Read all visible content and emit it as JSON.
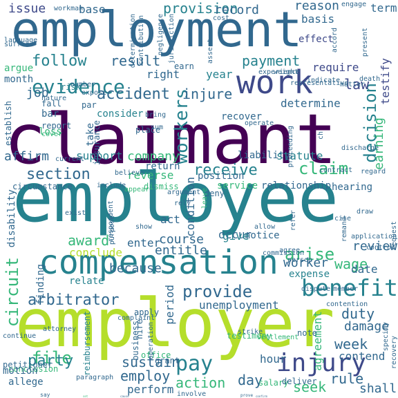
{
  "colors": {
    "background": "#ffffff",
    "palette": [
      "#440154",
      "#482878",
      "#3e4989",
      "#31688e",
      "#26828e",
      "#1f9e89",
      "#35b779",
      "#6ece58",
      "#b5de2b",
      "#fde725"
    ]
  },
  "words": [
    {
      "text": "employment"
    },
    {
      "text": "claimant"
    },
    {
      "text": "employee"
    },
    {
      "text": "employer"
    },
    {
      "text": "compensation"
    },
    {
      "text": "work"
    },
    {
      "text": "benefit"
    },
    {
      "text": "injury"
    },
    {
      "text": "evidence"
    },
    {
      "text": "workers"
    },
    {
      "text": "decision"
    },
    {
      "text": "follow"
    },
    {
      "text": "result"
    },
    {
      "text": "payment"
    },
    {
      "text": "issue"
    },
    {
      "text": "base"
    },
    {
      "text": "provision"
    },
    {
      "text": "record"
    },
    {
      "text": "reason"
    },
    {
      "text": "effect"
    },
    {
      "text": "law"
    },
    {
      "text": "require"
    },
    {
      "text": "testify"
    },
    {
      "text": "earning"
    },
    {
      "text": "determine"
    },
    {
      "text": "accident"
    },
    {
      "text": "injure"
    },
    {
      "text": "job"
    },
    {
      "text": "year"
    },
    {
      "text": "right"
    },
    {
      "text": "argue"
    },
    {
      "text": "month"
    },
    {
      "text": "affirm"
    },
    {
      "text": "section"
    },
    {
      "text": "company"
    },
    {
      "text": "receive"
    },
    {
      "text": "claim"
    },
    {
      "text": "loss"
    },
    {
      "text": "support"
    },
    {
      "text": "reverse"
    },
    {
      "text": "liability"
    },
    {
      "text": "statute"
    },
    {
      "text": "award"
    },
    {
      "text": "course"
    },
    {
      "text": "worker"
    },
    {
      "text": "circuit"
    },
    {
      "text": "arise"
    },
    {
      "text": "wage"
    },
    {
      "text": "review"
    },
    {
      "text": "date"
    },
    {
      "text": "conclude"
    },
    {
      "text": "entitle"
    },
    {
      "text": "finding"
    },
    {
      "text": "because"
    },
    {
      "text": "provide"
    },
    {
      "text": "arbitrator"
    },
    {
      "text": "relate"
    },
    {
      "text": "period"
    },
    {
      "text": "unemployment"
    },
    {
      "text": "expense"
    },
    {
      "text": "duty"
    },
    {
      "text": "file"
    },
    {
      "text": "damage"
    },
    {
      "text": "week"
    },
    {
      "text": "party"
    },
    {
      "text": "pay"
    },
    {
      "text": "sustain"
    },
    {
      "text": "employ"
    },
    {
      "text": "action"
    },
    {
      "text": "day"
    },
    {
      "text": "seek"
    },
    {
      "text": "hour"
    },
    {
      "text": "agreement"
    },
    {
      "text": "contend"
    },
    {
      "text": "rule"
    },
    {
      "text": "shall"
    },
    {
      "text": "perform"
    },
    {
      "text": "consider"
    },
    {
      "text": "recover"
    },
    {
      "text": "condition"
    },
    {
      "text": "position"
    },
    {
      "text": "service"
    },
    {
      "text": "disability"
    },
    {
      "text": "occur"
    },
    {
      "text": "notice"
    },
    {
      "text": "give"
    },
    {
      "text": "act"
    },
    {
      "text": "enter"
    },
    {
      "text": "dismiss"
    },
    {
      "text": "relationship"
    },
    {
      "text": "hearing"
    },
    {
      "text": "deny"
    },
    {
      "text": "include"
    },
    {
      "text": "circumstance"
    },
    {
      "text": "return"
    },
    {
      "text": "bar"
    },
    {
      "text": "report"
    },
    {
      "text": "fall"
    },
    {
      "text": "establish"
    },
    {
      "text": "risk"
    },
    {
      "text": "earn"
    },
    {
      "text": "par"
    },
    {
      "text": "take"
    },
    {
      "text": "insurance"
    },
    {
      "text": "place"
    },
    {
      "text": "apply"
    },
    {
      "text": "reimbursement"
    },
    {
      "text": "hire"
    },
    {
      "text": "business"
    },
    {
      "text": "office"
    },
    {
      "text": "cause"
    },
    {
      "text": "grant"
    },
    {
      "text": "salary"
    },
    {
      "text": "allege"
    },
    {
      "text": "conclusion"
    },
    {
      "text": "motion"
    },
    {
      "text": "say"
    },
    {
      "text": "set"
    },
    {
      "text": "involve"
    },
    {
      "text": "deliver"
    },
    {
      "text": "confirm"
    },
    {
      "text": "prove"
    },
    {
      "text": "note"
    },
    {
      "text": "complaint"
    },
    {
      "text": "attorney"
    },
    {
      "text": "testimony"
    },
    {
      "text": "strike"
    },
    {
      "text": "settlement"
    },
    {
      "text": "exist"
    },
    {
      "text": "purpose"
    },
    {
      "text": "respondent"
    },
    {
      "text": "petitioner"
    },
    {
      "text": "ch"
    },
    {
      "text": "proceeding"
    },
    {
      "text": "discharge"
    },
    {
      "text": "operate"
    },
    {
      "text": "contract"
    },
    {
      "text": "regard"
    },
    {
      "text": "draw"
    },
    {
      "text": "request"
    },
    {
      "text": "remand"
    },
    {
      "text": "application"
    },
    {
      "text": "control"
    },
    {
      "text": "agree"
    },
    {
      "text": "commission"
    },
    {
      "text": "allow"
    },
    {
      "text": "cite"
    },
    {
      "text": "refer"
    },
    {
      "text": "experience"
    },
    {
      "text": "weight"
    },
    {
      "text": "indicate"
    },
    {
      "text": "death"
    },
    {
      "text": "matter"
    },
    {
      "text": "accord"
    },
    {
      "text": "present"
    },
    {
      "text": "term"
    },
    {
      "text": "engage"
    },
    {
      "text": "basis"
    },
    {
      "text": "cost"
    },
    {
      "text": "contribution"
    },
    {
      "text": "determination"
    },
    {
      "text": "negligence"
    },
    {
      "text": "jurisdiction"
    },
    {
      "text": "assert"
    },
    {
      "text": "language"
    },
    {
      "text": "workman"
    },
    {
      "text": "number"
    },
    {
      "text": "expose"
    },
    {
      "text": "nature"
    },
    {
      "text": "cover"
    },
    {
      "text": "current"
    },
    {
      "text": "believe"
    },
    {
      "text": "bring"
    },
    {
      "text": "sum"
    },
    {
      "text": "appear"
    },
    {
      "text": "argument"
    },
    {
      "text": "rely"
    },
    {
      "text": "leave"
    },
    {
      "text": "show"
    },
    {
      "text": "person"
    },
    {
      "text": "dispute"
    },
    {
      "text": "member"
    },
    {
      "text": "contention"
    },
    {
      "text": "continue"
    },
    {
      "text": "paragraph"
    },
    {
      "text": "recovery"
    },
    {
      "text": "operation"
    },
    {
      "text": "specify"
    },
    {
      "text": "suffer"
    },
    {
      "text": "representative"
    },
    {
      "text": "co"
    },
    {
      "text": "suit"
    }
  ]
}
